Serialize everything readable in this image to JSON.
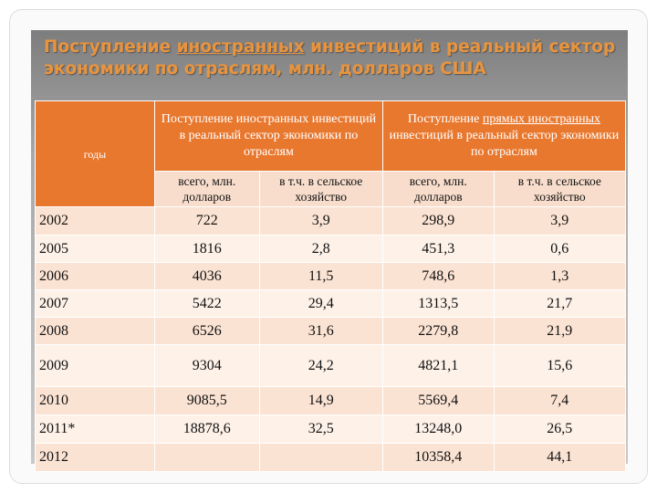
{
  "title": [
    "Поступление",
    "иностранных",
    "инвестиций в реальный сектор экономики по отраслям, млн. долларов США"
  ],
  "table": {
    "years_header": "годы",
    "group_headers": [
      [
        "Поступление иностранных инвестиций в реальный сектор экономики по отраслям"
      ],
      [
        "Поступление",
        "прямых иностранных",
        "инвестиций в реальный сектор экономики по отраслям"
      ]
    ],
    "sub_headers": [
      "всего, млн. долларов",
      "в т.ч. в сельское хозяйство",
      "всего, млн. долларов",
      "в т.ч. в сельское хозяйство"
    ],
    "rows": [
      [
        "2002",
        "722",
        "3,9",
        "298,9",
        "3,9"
      ],
      [
        "2005",
        "1816",
        "2,8",
        "451,3",
        "0,6"
      ],
      [
        "2006",
        "4036",
        "11,5",
        "748,6",
        "1,3"
      ],
      [
        "2007",
        "5422",
        "29,4",
        "1313,5",
        "21,7"
      ],
      [
        "2008",
        "6526",
        "31,6",
        "2279,8",
        "21,9"
      ],
      [
        "2009",
        "9304",
        "24,2",
        "4821,1",
        "15,6"
      ],
      [
        "2010",
        "9085,5",
        "14,9",
        "5569,4",
        "7,4"
      ],
      [
        "2011*",
        "18878,6",
        "32,5",
        "13248,0",
        "26,5"
      ],
      [
        "2012",
        null,
        null,
        "10358,4",
        "44,1"
      ]
    ]
  }
}
